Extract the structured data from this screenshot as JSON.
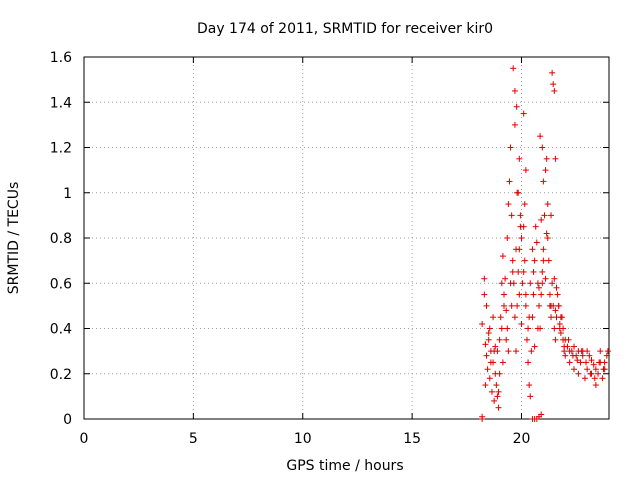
{
  "chart_data": {
    "type": "scatter",
    "title": "Day 174 of 2011, SRMTID for receiver kir0",
    "xlabel": "GPS time / hours",
    "ylabel": "SRMTID / TECUs",
    "xlim": [
      0,
      24
    ],
    "ylim": [
      0,
      1.6
    ],
    "xticks": [
      0,
      5,
      10,
      15,
      20
    ],
    "yticks": [
      0,
      0.2,
      0.4,
      0.6,
      0.8,
      1,
      1.2,
      1.4,
      1.6
    ],
    "xtick_labels": [
      "0",
      "5",
      "10",
      "15",
      "20"
    ],
    "ytick_labels": [
      "0",
      "0.2",
      "0.4",
      "0.6",
      "0.8",
      "1",
      "1.2",
      "1.4",
      "1.6"
    ],
    "grid": true,
    "marker": "+",
    "color": "#e00000",
    "series": [
      {
        "name": "SRMTID",
        "x": [
          18.2,
          18.3,
          18.35,
          18.4,
          18.45,
          18.5,
          18.55,
          18.6,
          18.65,
          18.7,
          18.75,
          18.8,
          18.85,
          18.9,
          18.95,
          19.0,
          19.05,
          19.1,
          19.15,
          19.2,
          19.25,
          19.3,
          19.35,
          19.4,
          19.45,
          19.5,
          19.55,
          19.6,
          19.6,
          19.65,
          19.7,
          19.75,
          19.8,
          19.85,
          19.9,
          19.95,
          20.0,
          20.05,
          20.1,
          20.15,
          20.2,
          20.25,
          20.3,
          20.35,
          20.4,
          20.45,
          20.5,
          20.55,
          20.6,
          20.65,
          20.7,
          20.75,
          20.8,
          20.85,
          20.9,
          20.95,
          21.0,
          21.05,
          21.1,
          21.15,
          21.2,
          21.25,
          21.3,
          21.35,
          21.4,
          21.45,
          21.5,
          21.55,
          21.6,
          21.65,
          21.7,
          21.75,
          21.8,
          21.85,
          21.9,
          21.95,
          22.0,
          22.1,
          22.2,
          22.3,
          22.4,
          22.5,
          22.6,
          22.7,
          22.8,
          22.9,
          23.0,
          23.1,
          23.2,
          23.3,
          23.4,
          23.5,
          23.6,
          23.7,
          23.8,
          23.9,
          18.3,
          18.4,
          18.5,
          18.6,
          18.7,
          18.8,
          18.9,
          19.0,
          19.1,
          19.2,
          19.3,
          19.4,
          19.5,
          19.7,
          19.8,
          19.9,
          20.0,
          20.1,
          20.2,
          20.3,
          20.4,
          20.5,
          20.6,
          20.8,
          20.9,
          21.0,
          21.1,
          21.2,
          21.3,
          21.5,
          21.6,
          21.7,
          21.8,
          21.9,
          22.0,
          22.2,
          22.4,
          22.6,
          22.8,
          23.0,
          23.2,
          23.4,
          23.6,
          23.8,
          18.35,
          18.55,
          18.75,
          18.95,
          19.15,
          19.35,
          19.55,
          19.75,
          19.95,
          20.15,
          20.35,
          20.55,
          20.75,
          20.95,
          21.15,
          21.35,
          21.55,
          21.75,
          21.95,
          22.15,
          22.35,
          22.55,
          22.75,
          22.95,
          23.15,
          23.35,
          23.55,
          23.75,
          23.95,
          19.62,
          19.7,
          19.78,
          21.4,
          21.45,
          21.5,
          20.1,
          20.2,
          20.85,
          20.95,
          21.0,
          19.9,
          19.85,
          21.35,
          21.55,
          18.2,
          18.2,
          20.5,
          20.6,
          20.7,
          20.8,
          20.9
        ],
        "y": [
          0.42,
          0.55,
          0.33,
          0.28,
          0.22,
          0.35,
          0.18,
          0.3,
          0.12,
          0.25,
          0.08,
          0.2,
          0.15,
          0.3,
          0.05,
          0.35,
          0.45,
          0.6,
          0.72,
          0.55,
          0.62,
          0.48,
          0.8,
          0.95,
          1.05,
          1.2,
          0.9,
          0.7,
          0.65,
          0.6,
          0.45,
          0.3,
          0.5,
          0.65,
          0.75,
          0.9,
          0.8,
          0.6,
          0.85,
          0.7,
          0.5,
          0.35,
          0.25,
          0.15,
          0.1,
          0.3,
          0.45,
          0.55,
          0.7,
          0.85,
          0.78,
          0.6,
          0.5,
          0.4,
          0.55,
          0.65,
          0.75,
          0.9,
          1.1,
          1.15,
          0.95,
          0.7,
          0.55,
          0.45,
          0.6,
          0.5,
          0.4,
          0.35,
          0.45,
          0.55,
          0.5,
          0.42,
          0.38,
          0.45,
          0.35,
          0.3,
          0.28,
          0.32,
          0.25,
          0.3,
          0.22,
          0.28,
          0.2,
          0.25,
          0.3,
          0.18,
          0.22,
          0.28,
          0.2,
          0.24,
          0.15,
          0.2,
          0.25,
          0.18,
          0.22,
          0.28,
          0.62,
          0.5,
          0.38,
          0.25,
          0.45,
          0.32,
          0.1,
          0.2,
          0.4,
          0.5,
          0.35,
          0.3,
          0.6,
          1.3,
          1.0,
          0.55,
          0.42,
          0.65,
          0.55,
          0.4,
          0.6,
          0.75,
          0.32,
          0.58,
          0.88,
          0.7,
          0.62,
          0.8,
          0.5,
          0.62,
          0.58,
          0.5,
          0.45,
          0.4,
          0.35,
          0.3,
          0.32,
          0.3,
          0.28,
          0.3,
          0.26,
          0.22,
          0.3,
          0.25,
          0.15,
          0.4,
          0.3,
          0.12,
          0.25,
          0.4,
          0.5,
          0.75,
          0.85,
          0.95,
          0.45,
          0.65,
          0.4,
          0.6,
          0.82,
          0.5,
          0.48,
          0.4,
          0.32,
          0.35,
          0.28,
          0.26,
          0.3,
          0.25,
          0.2,
          0.18,
          0.25,
          0.22,
          0.3,
          1.55,
          1.45,
          1.38,
          1.53,
          1.48,
          1.45,
          1.35,
          1.1,
          1.25,
          1.2,
          1.05,
          1.15,
          1.0,
          0.9,
          1.15,
          0.0,
          0.01,
          0.0,
          0.0,
          0.0,
          0.01,
          0.02
        ]
      }
    ]
  }
}
